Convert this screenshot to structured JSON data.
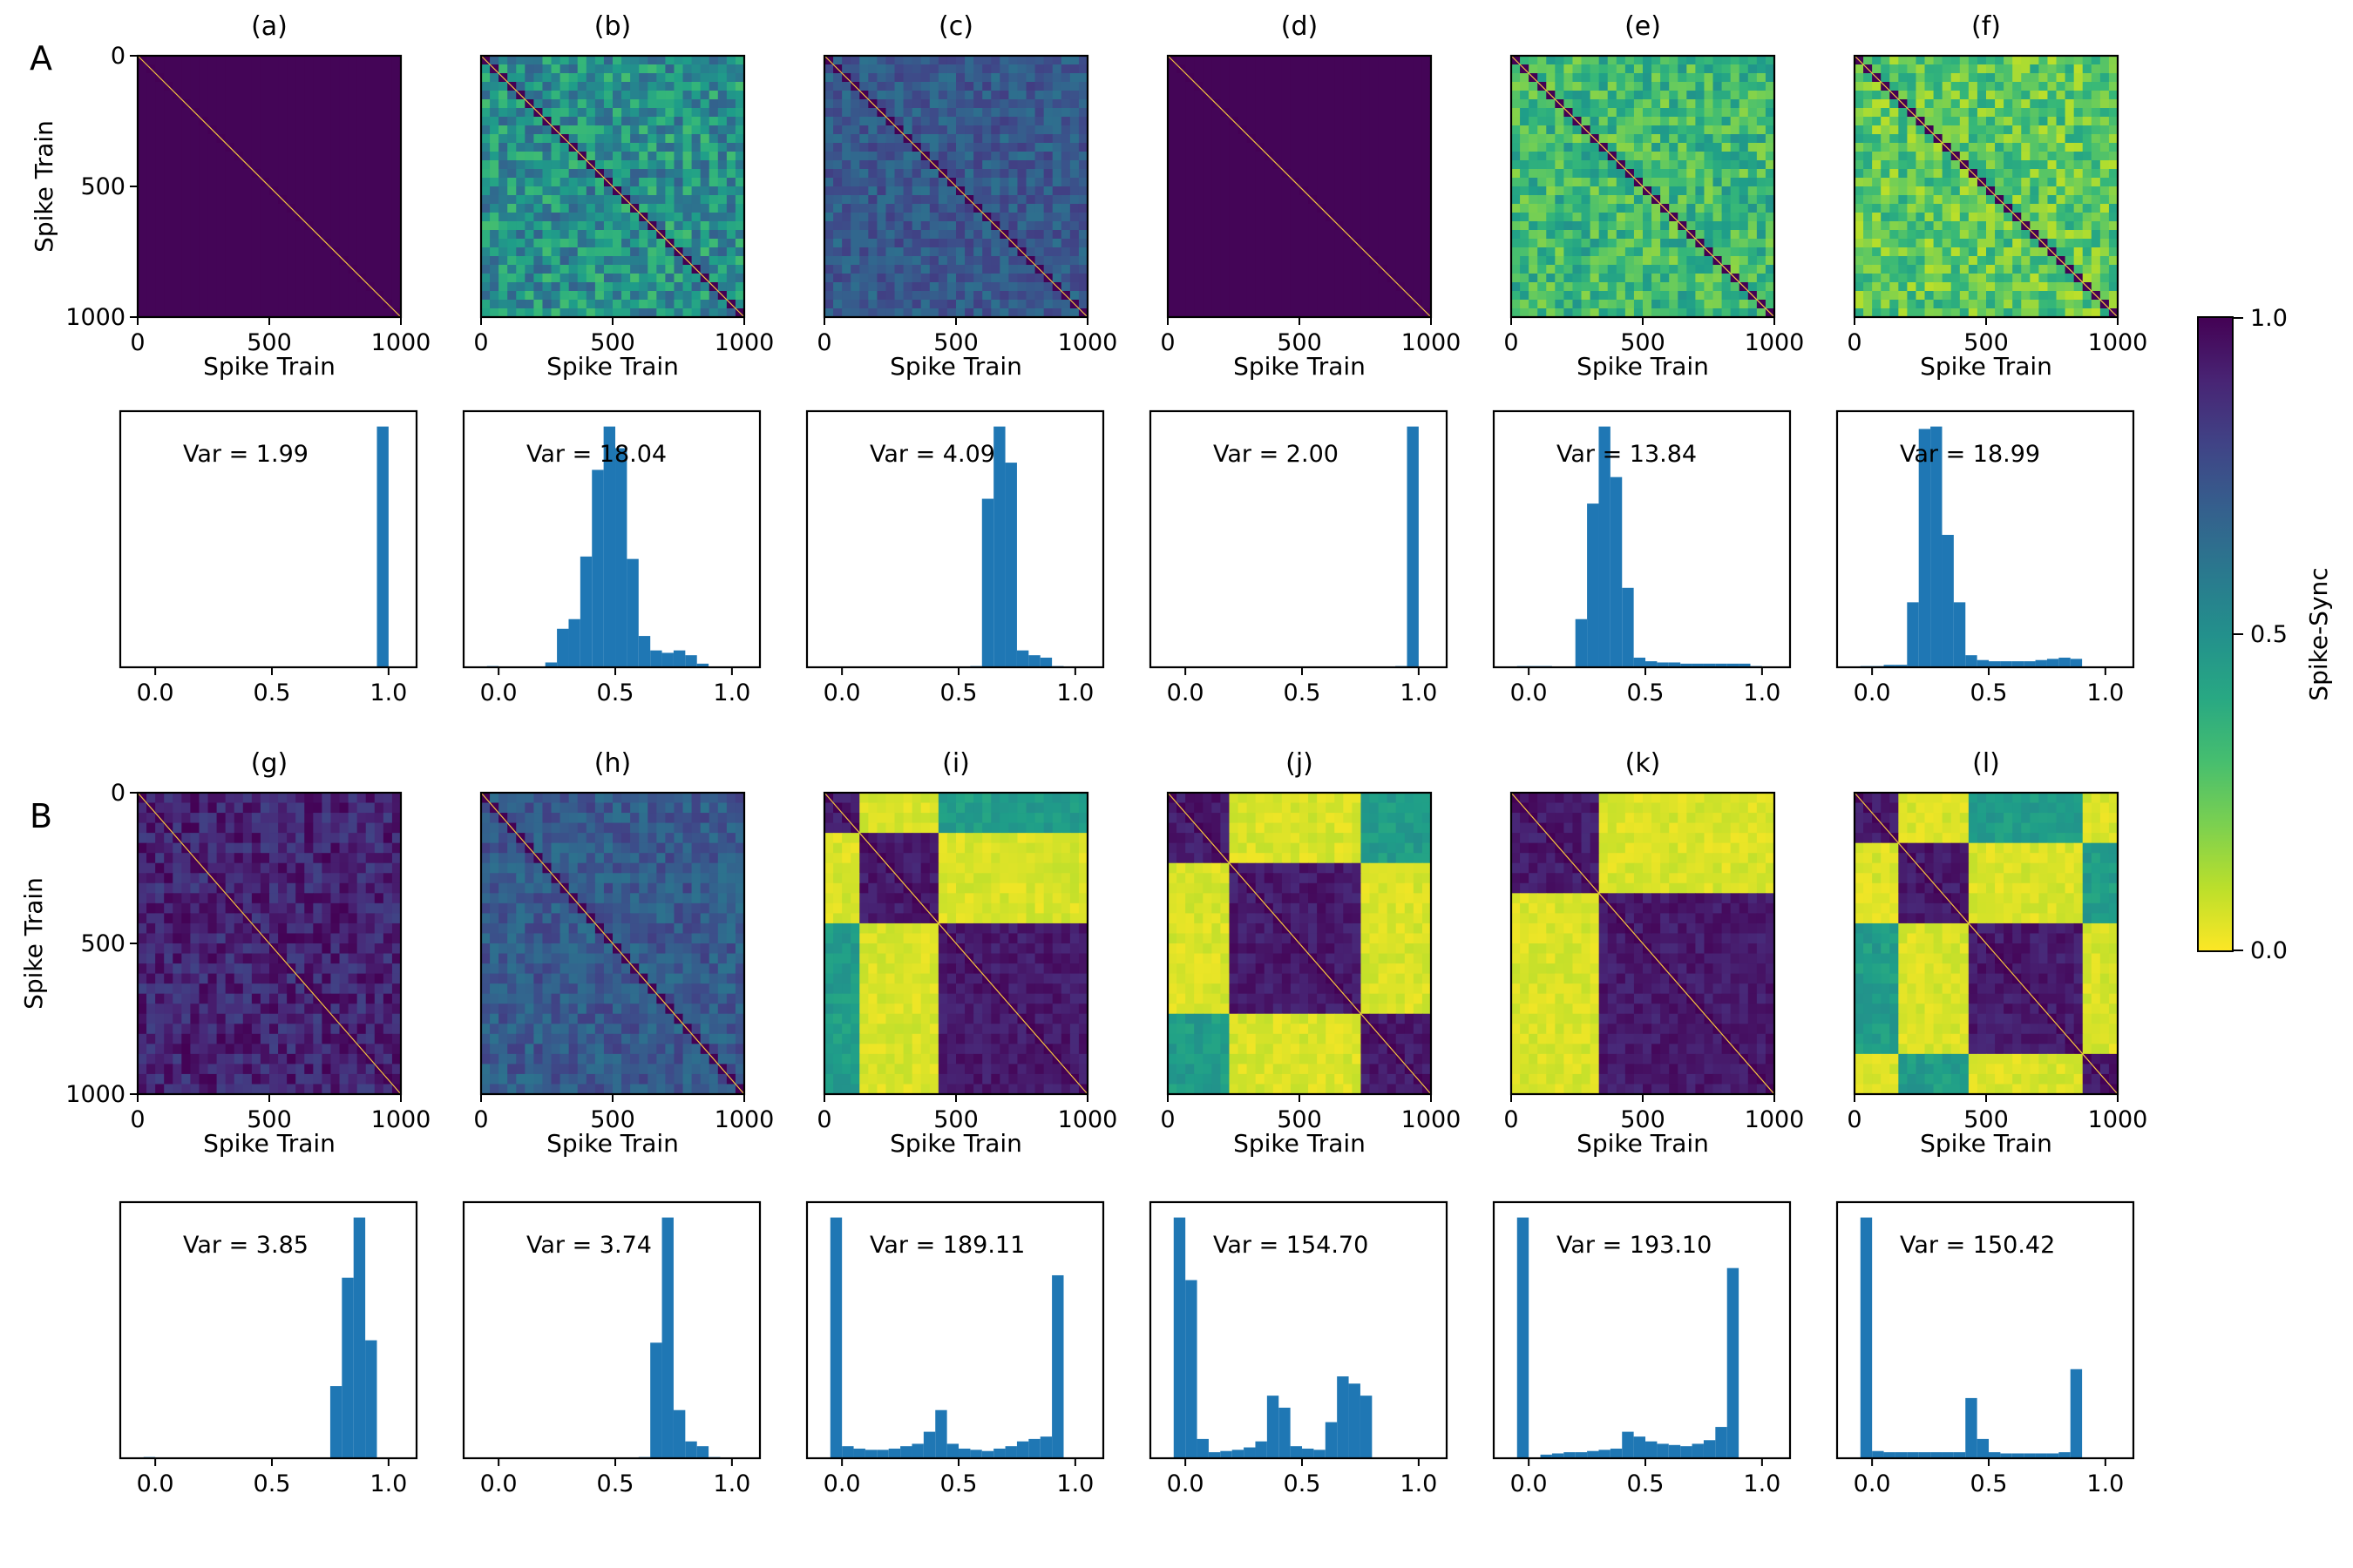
{
  "figure": {
    "row_labels": [
      "A",
      "B"
    ],
    "colorbar": {
      "label": "Spike-Sync",
      "ticks": [
        "1.0",
        "0.5",
        "0.0"
      ],
      "colormap": "viridis (reversed)"
    }
  },
  "chart_data": [
    {
      "panel": "(a)",
      "type": "heatmap",
      "pattern": "uniform-high",
      "xlabel": "Spike Train",
      "ylabel": "Spike Train",
      "x_ticks": [
        "0",
        "500",
        "1000"
      ],
      "y_ticks": [
        "0",
        "500",
        "1000"
      ],
      "range": [
        0,
        1000
      ]
    },
    {
      "panel": "(b)",
      "type": "heatmap",
      "pattern": "noise-mid",
      "xlabel": "Spike Train",
      "x_ticks": [
        "0",
        "500",
        "1000"
      ],
      "range": [
        0,
        1000
      ]
    },
    {
      "panel": "(c)",
      "type": "heatmap",
      "pattern": "noise-high",
      "xlabel": "Spike Train",
      "x_ticks": [
        "0",
        "500",
        "1000"
      ],
      "range": [
        0,
        1000
      ]
    },
    {
      "panel": "(d)",
      "type": "heatmap",
      "pattern": "uniform-high",
      "xlabel": "Spike Train",
      "x_ticks": [
        "0",
        "500",
        "1000"
      ],
      "range": [
        0,
        1000
      ]
    },
    {
      "panel": "(e)",
      "type": "heatmap",
      "pattern": "noise-low",
      "xlabel": "Spike Train",
      "x_ticks": [
        "0",
        "500",
        "1000"
      ],
      "range": [
        0,
        1000
      ]
    },
    {
      "panel": "(f)",
      "type": "heatmap",
      "pattern": "noise-lower",
      "xlabel": "Spike Train",
      "x_ticks": [
        "0",
        "500",
        "1000"
      ],
      "range": [
        0,
        1000
      ]
    },
    {
      "panel": "(g)",
      "type": "heatmap",
      "pattern": "noise-veryhigh",
      "xlabel": "Spike Train",
      "ylabel": "Spike Train",
      "x_ticks": [
        "0",
        "500",
        "1000"
      ],
      "y_ticks": [
        "0",
        "500",
        "1000"
      ],
      "range": [
        0,
        1000
      ]
    },
    {
      "panel": "(h)",
      "type": "heatmap",
      "pattern": "noise-high",
      "xlabel": "Spike Train",
      "x_ticks": [
        "0",
        "500",
        "1000"
      ],
      "range": [
        0,
        1000
      ]
    },
    {
      "panel": "(i)",
      "type": "heatmap",
      "pattern": "blocks",
      "clusters": [
        [
          0,
          150
        ],
        [
          150,
          450
        ],
        [
          450,
          1000
        ]
      ],
      "xlabel": "Spike Train",
      "x_ticks": [
        "0",
        "500",
        "1000"
      ],
      "range": [
        0,
        1000
      ]
    },
    {
      "panel": "(j)",
      "type": "heatmap",
      "pattern": "blocks",
      "clusters": [
        [
          0,
          250
        ],
        [
          250,
          750
        ],
        [
          750,
          1000
        ]
      ],
      "xlabel": "Spike Train",
      "x_ticks": [
        "0",
        "500",
        "1000"
      ],
      "range": [
        0,
        1000
      ]
    },
    {
      "panel": "(k)",
      "type": "heatmap",
      "pattern": "blocks",
      "clusters": [
        [
          0,
          330
        ],
        [
          330,
          1000
        ]
      ],
      "xlabel": "Spike Train",
      "x_ticks": [
        "0",
        "500",
        "1000"
      ],
      "range": [
        0,
        1000
      ]
    },
    {
      "panel": "(l)",
      "type": "heatmap",
      "pattern": "blocks",
      "clusters": [
        [
          0,
          180
        ],
        [
          180,
          420
        ],
        [
          420,
          870
        ],
        [
          870,
          1000
        ]
      ],
      "xlabel": "Spike Train",
      "x_ticks": [
        "0",
        "500",
        "1000"
      ],
      "range": [
        0,
        1000
      ]
    },
    {
      "type": "bar",
      "var_label": "Var = 1.99",
      "xlim": [
        -0.15,
        1.12
      ],
      "x_ticks": [
        "0.0",
        "0.5",
        "1.0"
      ],
      "bin_width": 0.05,
      "bins": [
        0.95
      ],
      "values": [
        1.0
      ]
    },
    {
      "type": "bar",
      "var_label": "Var = 18.04",
      "xlim": [
        -0.15,
        1.12
      ],
      "x_ticks": [
        "0.0",
        "0.5",
        "1.0"
      ],
      "bin_width": 0.05,
      "bins": [
        -0.05,
        0.0,
        0.05,
        0.1,
        0.15,
        0.2,
        0.25,
        0.3,
        0.35,
        0.4,
        0.45,
        0.5,
        0.55,
        0.6,
        0.65,
        0.7,
        0.75,
        0.8,
        0.85,
        0.9,
        0.95,
        1.0
      ],
      "values": [
        0.005,
        0.0,
        0.0,
        0.0,
        0.0,
        0.02,
        0.16,
        0.2,
        0.46,
        0.82,
        1.0,
        0.91,
        0.45,
        0.13,
        0.07,
        0.06,
        0.07,
        0.05,
        0.015,
        0.0,
        0.0,
        0.0
      ]
    },
    {
      "type": "bar",
      "var_label": "Var = 4.09",
      "xlim": [
        -0.15,
        1.12
      ],
      "x_ticks": [
        "0.0",
        "0.5",
        "1.0"
      ],
      "bin_width": 0.05,
      "bins": [
        0.55,
        0.6,
        0.65,
        0.7,
        0.75,
        0.8,
        0.85,
        0.9,
        0.95
      ],
      "values": [
        0.005,
        0.7,
        1.0,
        0.85,
        0.07,
        0.05,
        0.04,
        0.005,
        0.0
      ]
    },
    {
      "type": "bar",
      "var_label": "Var = 2.00",
      "xlim": [
        -0.15,
        1.12
      ],
      "x_ticks": [
        "0.0",
        "0.5",
        "1.0"
      ],
      "bin_width": 0.05,
      "bins": [
        0.9,
        0.95
      ],
      "values": [
        0.005,
        1.0
      ]
    },
    {
      "type": "bar",
      "var_label": "Var = 13.84",
      "xlim": [
        -0.15,
        1.12
      ],
      "x_ticks": [
        "0.0",
        "0.5",
        "1.0"
      ],
      "bin_width": 0.05,
      "bins": [
        -0.05,
        0.0,
        0.05,
        0.1,
        0.15,
        0.2,
        0.25,
        0.3,
        0.35,
        0.4,
        0.45,
        0.5,
        0.55,
        0.6,
        0.65,
        0.7,
        0.75,
        0.8,
        0.85,
        0.9,
        0.95
      ],
      "values": [
        0.005,
        0.005,
        0.005,
        0.0,
        0.0,
        0.2,
        0.68,
        1.0,
        0.79,
        0.33,
        0.04,
        0.025,
        0.02,
        0.02,
        0.015,
        0.015,
        0.015,
        0.015,
        0.015,
        0.015,
        0.005
      ]
    },
    {
      "type": "bar",
      "var_label": "Var = 18.99",
      "xlim": [
        -0.15,
        1.12
      ],
      "x_ticks": [
        "0.0",
        "0.5",
        "1.0"
      ],
      "bin_width": 0.05,
      "bins": [
        -0.05,
        0.0,
        0.05,
        0.1,
        0.15,
        0.2,
        0.25,
        0.3,
        0.35,
        0.4,
        0.45,
        0.5,
        0.55,
        0.6,
        0.65,
        0.7,
        0.75,
        0.8,
        0.85,
        0.9,
        0.95
      ],
      "values": [
        0.005,
        0.005,
        0.01,
        0.01,
        0.27,
        0.99,
        1.0,
        0.55,
        0.27,
        0.05,
        0.03,
        0.025,
        0.025,
        0.025,
        0.025,
        0.03,
        0.035,
        0.04,
        0.035,
        0.0,
        0.0
      ]
    },
    {
      "type": "bar",
      "var_label": "Var = 3.85",
      "xlim": [
        -0.15,
        1.12
      ],
      "x_ticks": [
        "0.0",
        "0.5",
        "1.0"
      ],
      "bin_width": 0.05,
      "bins": [
        -0.05,
        0.75,
        0.8,
        0.85,
        0.9,
        0.95
      ],
      "values": [
        0.005,
        0.3,
        0.75,
        1.0,
        0.49,
        0.0
      ]
    },
    {
      "type": "bar",
      "var_label": "Var = 3.74",
      "xlim": [
        -0.15,
        1.12
      ],
      "x_ticks": [
        "0.0",
        "0.5",
        "1.0"
      ],
      "bin_width": 0.05,
      "bins": [
        0.6,
        0.65,
        0.7,
        0.75,
        0.8,
        0.85,
        0.9
      ],
      "values": [
        0.005,
        0.48,
        1.0,
        0.2,
        0.07,
        0.05,
        0.005
      ]
    },
    {
      "type": "bar",
      "var_label": "Var = 189.11",
      "xlim": [
        -0.15,
        1.12
      ],
      "x_ticks": [
        "0.0",
        "0.5",
        "1.0"
      ],
      "bin_width": 0.05,
      "bins": [
        -0.05,
        0.0,
        0.05,
        0.1,
        0.15,
        0.2,
        0.25,
        0.3,
        0.35,
        0.4,
        0.45,
        0.5,
        0.55,
        0.6,
        0.65,
        0.7,
        0.75,
        0.8,
        0.85,
        0.9,
        0.95,
        1.0
      ],
      "values": [
        1.0,
        0.05,
        0.04,
        0.035,
        0.035,
        0.04,
        0.05,
        0.06,
        0.11,
        0.2,
        0.06,
        0.04,
        0.035,
        0.03,
        0.04,
        0.05,
        0.07,
        0.08,
        0.09,
        0.76,
        0.0,
        0.0
      ]
    },
    {
      "type": "bar",
      "var_label": "Var = 154.70",
      "xlim": [
        -0.15,
        1.12
      ],
      "x_ticks": [
        "0.0",
        "0.5",
        "1.0"
      ],
      "bin_width": 0.05,
      "bins": [
        -0.05,
        0.0,
        0.05,
        0.1,
        0.15,
        0.2,
        0.25,
        0.3,
        0.35,
        0.4,
        0.45,
        0.5,
        0.55,
        0.6,
        0.65,
        0.7,
        0.75,
        0.8,
        0.85,
        0.9,
        0.95
      ],
      "values": [
        1.0,
        0.74,
        0.08,
        0.025,
        0.03,
        0.035,
        0.045,
        0.07,
        0.26,
        0.21,
        0.05,
        0.04,
        0.035,
        0.15,
        0.34,
        0.31,
        0.26,
        0.0,
        0.0,
        0.0,
        0.0
      ]
    },
    {
      "type": "bar",
      "var_label": "Var = 193.10",
      "xlim": [
        -0.15,
        1.12
      ],
      "x_ticks": [
        "0.0",
        "0.5",
        "1.0"
      ],
      "bin_width": 0.05,
      "bins": [
        -0.05,
        0.0,
        0.05,
        0.1,
        0.15,
        0.2,
        0.25,
        0.3,
        0.35,
        0.4,
        0.45,
        0.5,
        0.55,
        0.6,
        0.65,
        0.7,
        0.75,
        0.8,
        0.85,
        0.9,
        0.95,
        1.0
      ],
      "values": [
        1.0,
        0.0,
        0.015,
        0.02,
        0.025,
        0.025,
        0.03,
        0.035,
        0.04,
        0.11,
        0.09,
        0.07,
        0.06,
        0.055,
        0.05,
        0.06,
        0.075,
        0.13,
        0.79,
        0.0,
        0.0,
        0.0
      ]
    },
    {
      "type": "bar",
      "var_label": "Var = 150.42",
      "xlim": [
        -0.15,
        1.12
      ],
      "x_ticks": [
        "0.0",
        "0.5",
        "1.0"
      ],
      "bin_width": 0.05,
      "bins": [
        -0.05,
        0.0,
        0.05,
        0.1,
        0.15,
        0.2,
        0.25,
        0.3,
        0.35,
        0.4,
        0.45,
        0.5,
        0.55,
        0.6,
        0.65,
        0.7,
        0.75,
        0.8,
        0.85,
        0.9,
        0.95,
        1.0
      ],
      "values": [
        1.0,
        0.03,
        0.025,
        0.025,
        0.025,
        0.025,
        0.025,
        0.025,
        0.025,
        0.25,
        0.08,
        0.025,
        0.02,
        0.02,
        0.02,
        0.02,
        0.02,
        0.025,
        0.37,
        0.0,
        0.0,
        0.0
      ]
    }
  ]
}
